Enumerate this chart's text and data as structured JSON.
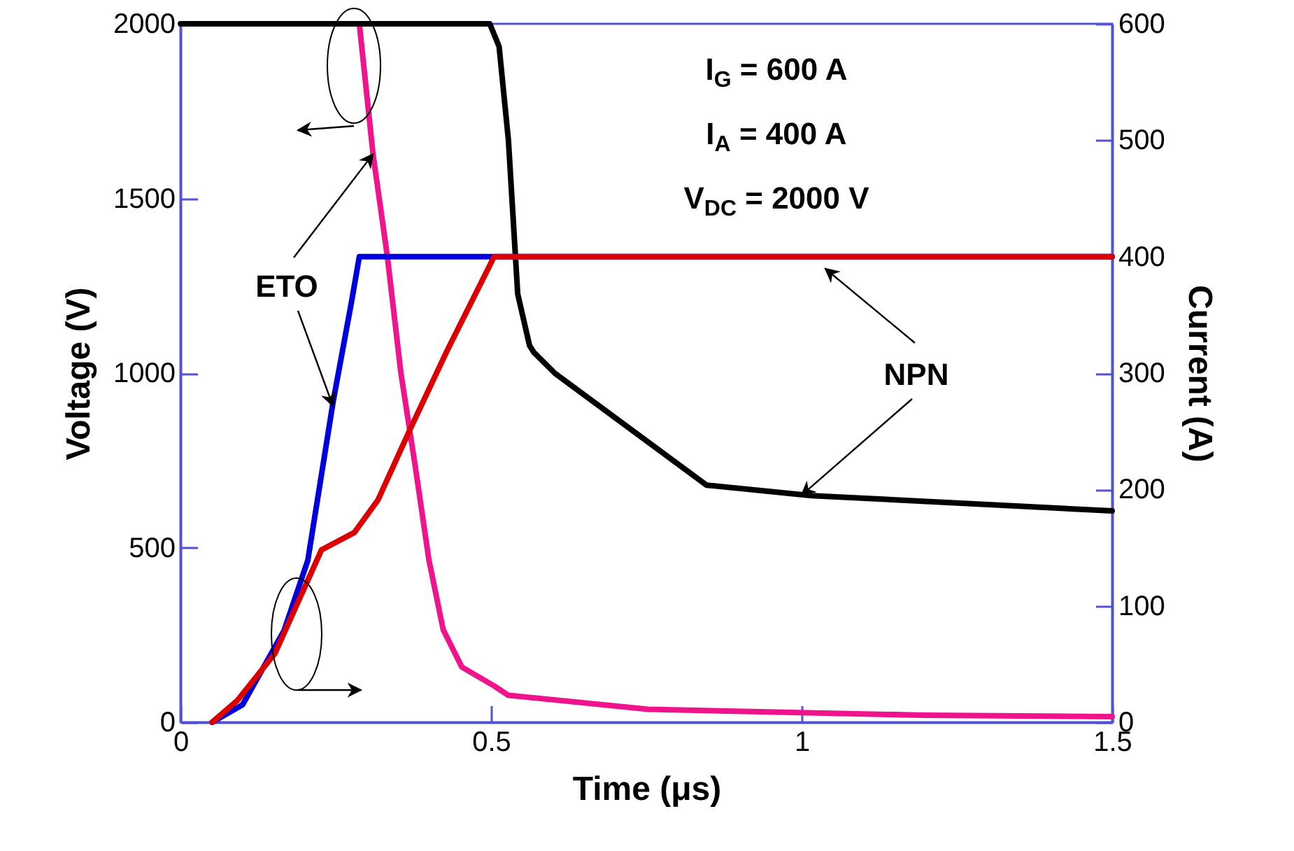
{
  "chart_data": {
    "type": "line",
    "xlabel": "Time (μs)",
    "ylabel": "Voltage (V)",
    "y2label": "Current (A)",
    "annotations": [
      "I$_{G}$ = 600 A",
      "I$_{A}$ = 400 A",
      "V$_{DC}$ = 2000 V",
      {
        "text": "ETO",
        "x": 0.31,
        "y": 1627
      },
      {
        "text": "NPN",
        "x": 1.0,
        "y": 650
      }
    ],
    "xlim": [
      0,
      1.5
    ],
    "xticks": [
      0,
      0.5,
      1,
      1.5
    ],
    "ylim": [
      0,
      2000
    ],
    "yticks": [
      0,
      500,
      1000,
      1500,
      2000
    ],
    "y2lim": [
      0,
      600
    ],
    "y2ticks": [
      0,
      100,
      200,
      300,
      400,
      500,
      600
    ],
    "grid": false,
    "marker": "none",
    "line_style": "solid",
    "series": [
      {
        "color": "#f0148c",
        "x": [
          0.288,
          0.31,
          0.333,
          0.355,
          0.378,
          0.4,
          0.423,
          0.453,
          0.505,
          0.528,
          0.753,
          1.2,
          1.5
        ],
        "values": [
          2000,
          1627,
          1335,
          999,
          733,
          465,
          265,
          158,
          104,
          77,
          37,
          20,
          16
        ]
      },
      {
        "color": "#000000",
        "x": [
          0,
          0.498,
          0.513,
          0.528,
          0.543,
          0.562,
          0.569,
          0.603,
          0.847,
          1.016,
          1.5
        ],
        "values": [
          2000,
          2000,
          1935,
          1667,
          1226,
          1079,
          1059,
          999,
          679,
          649,
          605
        ]
      },
      {
        "color": "#0000dd",
        "axis": "y2",
        "x": [
          0.051,
          0.1,
          0.167,
          0.205,
          0.246,
          0.275,
          0.288,
          0.4,
          1.5
        ],
        "values": [
          0,
          15,
          79,
          139,
          276,
          360,
          400,
          400,
          400
        ]
      },
      {
        "color": "#dd0000",
        "axis": "y2",
        "x": [
          0.051,
          0.092,
          0.152,
          0.227,
          0.28,
          0.318,
          0.37,
          0.43,
          0.505,
          1.5
        ],
        "values": [
          0,
          19,
          59,
          148,
          163,
          191,
          252,
          320,
          400,
          400
        ]
      }
    ]
  }
}
